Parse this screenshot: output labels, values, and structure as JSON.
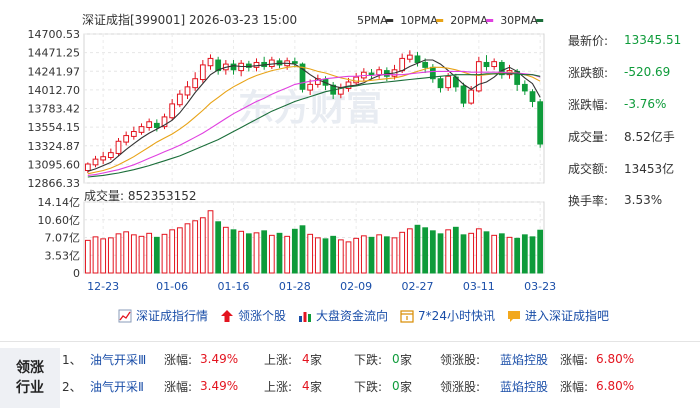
{
  "header": {
    "title": "深证成指[399001] 2026-03-23 15:00",
    "ma_legend": [
      {
        "label": "5PMA",
        "color": "#333333"
      },
      {
        "label": "10PMA",
        "color": "#e8a317"
      },
      {
        "label": "20PMA",
        "color": "#e040e0"
      },
      {
        "label": "30PMA",
        "color": "#1b6e3a"
      }
    ]
  },
  "stats": [
    {
      "label": "最新价:",
      "value": "13345.51",
      "tone": "green"
    },
    {
      "label": "涨跌额:",
      "value": "-520.69",
      "tone": "green"
    },
    {
      "label": "涨跌幅:",
      "value": "-3.76%",
      "tone": "green"
    },
    {
      "label": "成交量:",
      "value": "8.52亿手",
      "tone": "normal"
    },
    {
      "label": "成交额:",
      "value": "13453亿",
      "tone": "normal"
    },
    {
      "label": "换手率:",
      "value": "3.53%",
      "tone": "normal"
    }
  ],
  "watermark": "东方财富",
  "volume_header": "成交量: 852353152",
  "links": [
    {
      "label": "深证成指行情",
      "icon": "line-chart-icon"
    },
    {
      "label": "领涨个股",
      "icon": "up-arrow-icon"
    },
    {
      "label": "大盘资金流向",
      "icon": "bar-chart-icon"
    },
    {
      "label": "7*24小时快讯",
      "icon": "clock-icon"
    },
    {
      "label": "进入深证成指吧",
      "icon": "forum-icon"
    }
  ],
  "board": {
    "title_line1": "领涨",
    "title_line2": "行业",
    "rows": [
      {
        "index": "1、",
        "name": "油气开采Ⅲ",
        "change_label": "涨幅:",
        "change": "3.49%",
        "up_label": "上涨:",
        "up": "4",
        "down_label": "下跌:",
        "down": "0",
        "unit": "家",
        "leader_label": "领涨股:",
        "leader": "蓝焰控股",
        "leader_change_label": "涨幅:",
        "leader_change": "6.80%"
      },
      {
        "index": "2、",
        "name": "油气开采Ⅱ",
        "change_label": "涨幅:",
        "change": "3.49%",
        "up_label": "上涨:",
        "up": "4",
        "down_label": "下跌:",
        "down": "0",
        "unit": "家",
        "leader_label": "领涨股:",
        "leader": "蓝焰控股",
        "leader_change_label": "涨幅:",
        "leader_change": "6.80%"
      }
    ]
  },
  "chart_data": {
    "type": "candlestick",
    "price_axis": {
      "ticks": [
        "14700.53",
        "14471.25",
        "14241.97",
        "14012.70",
        "13783.42",
        "13554.15",
        "13324.87",
        "13095.60",
        "12866.33"
      ],
      "min": 12866.33,
      "max": 14700.53
    },
    "volume_axis": {
      "ticks": [
        "14.14亿",
        "10.60亿",
        "7.07亿",
        "3.53亿",
        "0"
      ],
      "max": 14.14,
      "unit": "亿"
    },
    "x_labels": [
      {
        "label": "12-23",
        "index": 2
      },
      {
        "label": "01-06",
        "index": 11
      },
      {
        "label": "01-16",
        "index": 19
      },
      {
        "label": "01-28",
        "index": 27
      },
      {
        "label": "02-09",
        "index": 35
      },
      {
        "label": "02-27",
        "index": 43
      },
      {
        "label": "03-11",
        "index": 51
      },
      {
        "label": "03-23",
        "index": 59
      }
    ],
    "up_color": "#e3141f",
    "down_color": "#0e9b3a",
    "candles": [
      [
        13020,
        13100,
        12990,
        13120
      ],
      [
        13090,
        13160,
        13060,
        13200
      ],
      [
        13150,
        13190,
        13100,
        13250
      ],
      [
        13180,
        13240,
        13150,
        13290
      ],
      [
        13230,
        13380,
        13200,
        13420
      ],
      [
        13370,
        13450,
        13330,
        13500
      ],
      [
        13440,
        13500,
        13400,
        13560
      ],
      [
        13490,
        13560,
        13460,
        13600
      ],
      [
        13550,
        13620,
        13510,
        13660
      ],
      [
        13600,
        13550,
        13500,
        13650
      ],
      [
        13560,
        13680,
        13530,
        13720
      ],
      [
        13670,
        13840,
        13640,
        13900
      ],
      [
        13830,
        13960,
        13800,
        14010
      ],
      [
        13950,
        14050,
        13900,
        14120
      ],
      [
        14040,
        14150,
        14000,
        14230
      ],
      [
        14140,
        14320,
        14100,
        14380
      ],
      [
        14310,
        14400,
        14260,
        14450
      ],
      [
        14380,
        14250,
        14200,
        14420
      ],
      [
        14260,
        14330,
        14200,
        14380
      ],
      [
        14330,
        14260,
        14200,
        14380
      ],
      [
        14250,
        14340,
        14180,
        14380
      ],
      [
        14330,
        14290,
        14240,
        14370
      ],
      [
        14290,
        14350,
        14240,
        14400
      ],
      [
        14350,
        14300,
        14260,
        14420
      ],
      [
        14300,
        14380,
        14270,
        14420
      ],
      [
        14370,
        14320,
        14280,
        14400
      ],
      [
        14310,
        14370,
        14260,
        14410
      ],
      [
        14360,
        14340,
        14290,
        14410
      ],
      [
        14330,
        14020,
        13980,
        14350
      ],
      [
        14010,
        14080,
        13950,
        14140
      ],
      [
        14080,
        14150,
        14040,
        14200
      ],
      [
        14140,
        14070,
        14010,
        14180
      ],
      [
        14070,
        13960,
        13900,
        14110
      ],
      [
        13960,
        14040,
        13910,
        14090
      ],
      [
        14030,
        14110,
        13990,
        14160
      ],
      [
        14100,
        14170,
        14060,
        14220
      ],
      [
        14160,
        14230,
        14120,
        14280
      ],
      [
        14220,
        14200,
        14140,
        14270
      ],
      [
        14200,
        14260,
        14150,
        14300
      ],
      [
        14250,
        14180,
        14120,
        14290
      ],
      [
        14180,
        14260,
        14140,
        14320
      ],
      [
        14250,
        14400,
        14220,
        14460
      ],
      [
        14390,
        14440,
        14350,
        14500
      ],
      [
        14430,
        14350,
        14300,
        14480
      ],
      [
        14350,
        14290,
        14220,
        14400
      ],
      [
        14290,
        14150,
        14100,
        14330
      ],
      [
        14150,
        14040,
        13980,
        14180
      ],
      [
        14040,
        14180,
        14000,
        14220
      ],
      [
        14170,
        14050,
        13990,
        14210
      ],
      [
        14060,
        13850,
        13800,
        14100
      ],
      [
        13850,
        14010,
        13830,
        14060
      ],
      [
        14000,
        14360,
        13980,
        14420
      ],
      [
        14350,
        14300,
        14250,
        14440
      ],
      [
        14300,
        14360,
        14260,
        14400
      ],
      [
        14350,
        14200,
        14150,
        14380
      ],
      [
        14200,
        14250,
        14150,
        14320
      ],
      [
        14240,
        14080,
        14000,
        14270
      ],
      [
        14080,
        14000,
        13950,
        14130
      ],
      [
        13990,
        13870,
        13800,
        14020
      ],
      [
        13866,
        13346,
        13300,
        13900
      ]
    ],
    "volumes": [
      6.5,
      7.2,
      6.8,
      7.0,
      7.8,
      8.2,
      7.6,
      7.3,
      7.9,
      7.1,
      7.7,
      8.6,
      9.0,
      9.8,
      10.4,
      11.0,
      12.4,
      10.2,
      9.1,
      8.6,
      8.3,
      7.8,
      8.0,
      8.4,
      7.5,
      7.9,
      7.3,
      8.7,
      9.4,
      7.7,
      7.0,
      6.8,
      7.3,
      6.6,
      6.2,
      6.9,
      7.4,
      7.1,
      7.6,
      7.2,
      7.0,
      8.1,
      8.8,
      9.5,
      9.0,
      8.4,
      7.8,
      8.6,
      9.1,
      7.6,
      7.9,
      8.8,
      8.2,
      7.5,
      7.8,
      7.1,
      6.9,
      7.6,
      7.2,
      8.52
    ],
    "ma_series": [
      {
        "name": "5PMA",
        "color": "#333333",
        "values": [
          13010,
          13040,
          13080,
          13120,
          13200,
          13280,
          13350,
          13420,
          13480,
          13530,
          13580,
          13640,
          13730,
          13850,
          13980,
          14090,
          14200,
          14260,
          14290,
          14310,
          14300,
          14300,
          14310,
          14320,
          14330,
          14340,
          14340,
          14330,
          14270,
          14200,
          14140,
          14100,
          14060,
          14040,
          14060,
          14070,
          14100,
          14150,
          14190,
          14210,
          14220,
          14250,
          14300,
          14340,
          14380,
          14380,
          14330,
          14250,
          14170,
          14080,
          14020,
          14080,
          14110,
          14170,
          14250,
          14290,
          14240,
          14160,
          14090,
          13920
        ]
      },
      {
        "name": "10PMA",
        "color": "#e8a317",
        "values": [
          12980,
          13000,
          13020,
          13050,
          13090,
          13140,
          13190,
          13250,
          13310,
          13370,
          13420,
          13470,
          13530,
          13600,
          13680,
          13760,
          13850,
          13920,
          13990,
          14050,
          14100,
          14150,
          14190,
          14220,
          14250,
          14270,
          14290,
          14300,
          14290,
          14270,
          14240,
          14220,
          14190,
          14160,
          14140,
          14120,
          14120,
          14130,
          14140,
          14150,
          14160,
          14180,
          14210,
          14240,
          14270,
          14290,
          14290,
          14280,
          14260,
          14230,
          14200,
          14190,
          14200,
          14210,
          14220,
          14230,
          14220,
          14200,
          14170,
          14120
        ]
      },
      {
        "name": "20PMA",
        "color": "#e040e0",
        "values": [
          12960,
          12970,
          12990,
          13010,
          13030,
          13060,
          13090,
          13130,
          13170,
          13210,
          13250,
          13290,
          13330,
          13380,
          13430,
          13480,
          13540,
          13600,
          13660,
          13720,
          13770,
          13820,
          13870,
          13910,
          13960,
          14000,
          14040,
          14080,
          14100,
          14120,
          14130,
          14150,
          14160,
          14170,
          14180,
          14180,
          14190,
          14190,
          14200,
          14200,
          14200,
          14200,
          14210,
          14220,
          14230,
          14240,
          14240,
          14240,
          14240,
          14240,
          14230,
          14230,
          14230,
          14230,
          14230,
          14220,
          14220,
          14210,
          14200,
          14170
        ]
      },
      {
        "name": "30PMA",
        "color": "#1b6e3a",
        "values": [
          12940,
          12950,
          12960,
          12975,
          12990,
          13010,
          13030,
          13055,
          13080,
          13110,
          13140,
          13170,
          13200,
          13240,
          13280,
          13320,
          13360,
          13400,
          13450,
          13500,
          13550,
          13600,
          13650,
          13700,
          13750,
          13790,
          13830,
          13870,
          13900,
          13930,
          13960,
          13990,
          14010,
          14030,
          14050,
          14060,
          14080,
          14090,
          14100,
          14110,
          14120,
          14130,
          14140,
          14150,
          14160,
          14170,
          14180,
          14190,
          14200,
          14200,
          14200,
          14200,
          14210,
          14210,
          14210,
          14210,
          14210,
          14200,
          14200,
          14180
        ]
      }
    ]
  }
}
